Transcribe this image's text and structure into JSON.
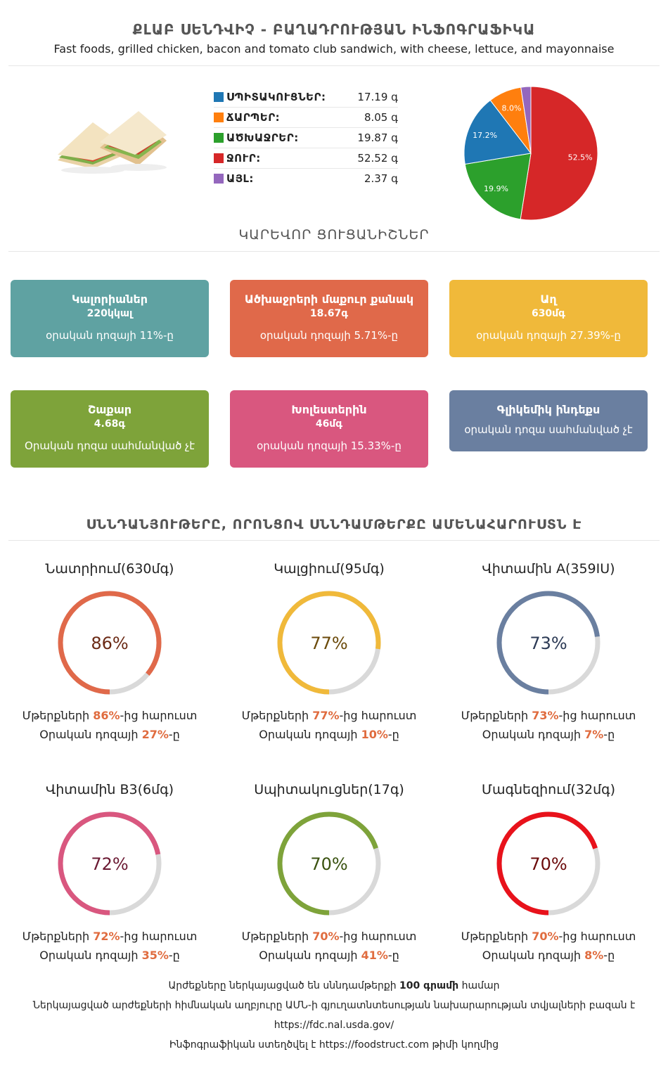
{
  "header": {
    "title": "ՔԼԱԲ ՍԵՆԴՎԻՉ - ԲԱՂԱԴՐՈՒԹՅԱՆ ԻՆՖՈԳՐԱՖԻԿԱ",
    "subtitle": "Fast foods, grilled chicken, bacon and tomato club sandwich, with cheese, lettuce, and mayonnaise"
  },
  "legend": [
    {
      "label": "ՍՊԻՏԱԿՈՒՑՆԵՐ:",
      "value": "17.19 գ",
      "color": "#1f77b4"
    },
    {
      "label": "ՃԱՐՊԵՐ:",
      "value": "8.05 գ",
      "color": "#ff7f0e"
    },
    {
      "label": "ԱԾԽԱՋՐԵՐ:",
      "value": "19.87 գ",
      "color": "#2ca02c"
    },
    {
      "label": "ՋՈՒՐ:",
      "value": "52.52 գ",
      "color": "#d62728"
    },
    {
      "label": "ԱՅԼ:",
      "value": "2.37 գ",
      "color": "#9467bd"
    }
  ],
  "chart_data": {
    "type": "pie",
    "labels": [
      "Ջուր",
      "Ածխաջրեր",
      "Սպիտակուցներ",
      "Ճարպեր",
      "Այլ"
    ],
    "values": [
      52.5,
      19.9,
      17.2,
      8.0,
      2.4
    ],
    "value_labels": [
      "52.5%",
      "19.9%",
      "17.2%",
      "8.0%",
      ""
    ],
    "colors": [
      "#d62728",
      "#2ca02c",
      "#1f77b4",
      "#ff7f0e",
      "#9467bd"
    ]
  },
  "sections": {
    "key_indicators": "ԿԱՐԵՎՈՐ ՑՈՒՑԱՆԻՇՆԵՐ",
    "richest_nutrients": "ՍՆՆԴԱՆՅՈՒԹԵՐԸ, ՈՐՈՆՑՈՎ ՍՆՆԴԱՄԹԵՐՔԸ ԱՄԵՆԱՀԱՐՈՒՍՏՆ Է"
  },
  "cards": [
    {
      "name": "Կալորիաներ",
      "value": "220կկալ",
      "note": "օրական դոզայի 11%-ը",
      "color": "#5fa2a2"
    },
    {
      "name": "Ածխաջրերի մաքուր քանակ",
      "value": "18.67գ",
      "note": "օրական դոզայի 5.71%-ը",
      "color": "#e0694a"
    },
    {
      "name": "Աղ",
      "value": "630մգ",
      "note": "օրական դոզայի 27.39%-ը",
      "color": "#f0b93a"
    },
    {
      "name": "Շաքար",
      "value": "4.68գ",
      "note": "Օրական դոզա սահմանված չէ",
      "color": "#7ea33a"
    },
    {
      "name": "Խոլեստերին",
      "value": "46մգ",
      "note": "օրական դոզայի 15.33%-ը",
      "color": "#d9577f"
    },
    {
      "name": "Գլիկեմիկ ինդեքս",
      "value": "",
      "note": "օրական դոզա սահմանված չէ",
      "color": "#6a7fa0"
    }
  ],
  "nutrients": [
    {
      "name": "Նատրիում(630մգ)",
      "pct": 86,
      "pct_label": "86%",
      "rich": "86%",
      "daily": "27%",
      "color": "#e0694a",
      "text_color": "#6b2a15"
    },
    {
      "name": "Կալցիում(95մգ)",
      "pct": 77,
      "pct_label": "77%",
      "rich": "77%",
      "daily": "10%",
      "color": "#f0b93a",
      "text_color": "#6b4a0a"
    },
    {
      "name": "Վիտամին A(359IU)",
      "pct": 73,
      "pct_label": "73%",
      "rich": "73%",
      "daily": "7%",
      "color": "#6a7fa0",
      "text_color": "#2c3a55"
    },
    {
      "name": "Վիտամին B3(6մգ)",
      "pct": 72,
      "pct_label": "72%",
      "rich": "72%",
      "daily": "35%",
      "color": "#d9577f",
      "text_color": "#6b1a33"
    },
    {
      "name": "Սպիտակուցներ(17գ)",
      "pct": 70,
      "pct_label": "70%",
      "rich": "70%",
      "daily": "41%",
      "color": "#7ea33a",
      "text_color": "#3a5210"
    },
    {
      "name": "Մագնեզիում(32մգ)",
      "pct": 70,
      "pct_label": "70%",
      "rich": "70%",
      "daily": "8%",
      "color": "#e8121b",
      "text_color": "#6b0a0a"
    }
  ],
  "nutrient_text": {
    "rich_prefix": "Մթերքների ",
    "rich_suffix": "-ից հարուստ",
    "daily_prefix": "Օրական դոզայի ",
    "daily_suffix": "-ը"
  },
  "footer": {
    "line1_prefix": "Արժեքները ներկայացված են սննդամթերքի ",
    "line1_bold": "100 գրամի",
    "line1_suffix": " համար",
    "line2": "Ներկայացված արժեքների հիմնական աղբյուրը ԱՄՆ-ի գյուղատնտեսության նախարարության տվյալների բազան է",
    "line3": "https://fdc.nal.usda.gov/",
    "line4_prefix": "Ինֆոգրաֆիկան ստեղծվել է ",
    "line4_link": "https://foodstruct.com",
    "line4_suffix": " թիմի կողմից"
  }
}
